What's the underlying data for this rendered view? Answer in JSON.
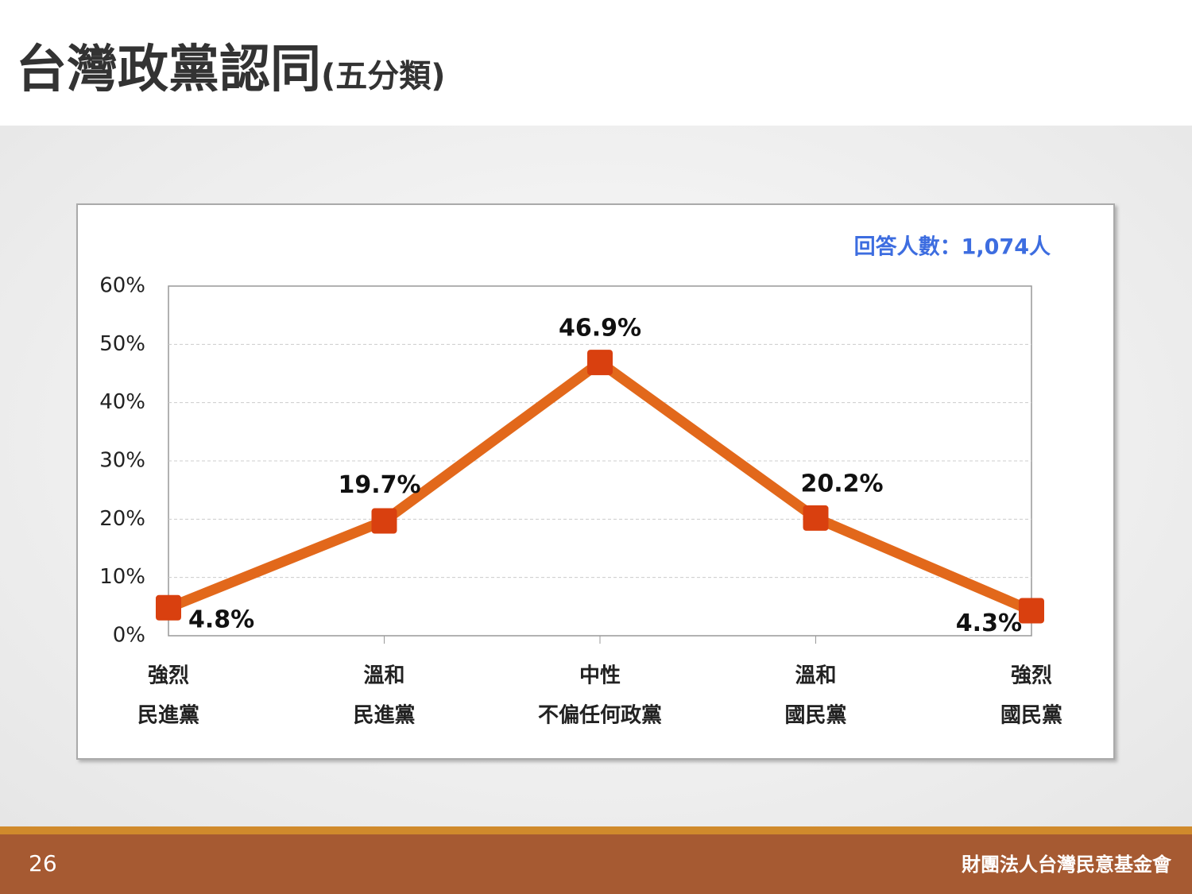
{
  "header": {
    "title": "台灣政黨認同",
    "subtitle": "(五分類)"
  },
  "chart_data": {
    "type": "line",
    "annotation": "回答人數：1,074人",
    "categories": [
      [
        "強烈",
        "民進黨"
      ],
      [
        "溫和",
        "民進黨"
      ],
      [
        "中性",
        "不偏任何政黨"
      ],
      [
        "溫和",
        "國民黨"
      ],
      [
        "強烈",
        "國民黨"
      ]
    ],
    "values": [
      4.8,
      19.7,
      46.9,
      20.2,
      4.3
    ],
    "value_labels": [
      "4.8%",
      "19.7%",
      "46.9%",
      "20.2%",
      "4.3%"
    ],
    "color": "#e2681b",
    "marker_color": "#d9400f",
    "ylim": [
      0,
      60
    ],
    "yticks": [
      {
        "value": 0,
        "label": "0%"
      },
      {
        "value": 10,
        "label": "10%"
      },
      {
        "value": 20,
        "label": "20%"
      },
      {
        "value": 30,
        "label": "30%"
      },
      {
        "value": 40,
        "label": "40%"
      },
      {
        "value": 50,
        "label": "50%"
      },
      {
        "value": 60,
        "label": "60%"
      }
    ],
    "grid": true
  },
  "footer": {
    "page": "26",
    "organization": "財團法人台灣民意基金會"
  }
}
